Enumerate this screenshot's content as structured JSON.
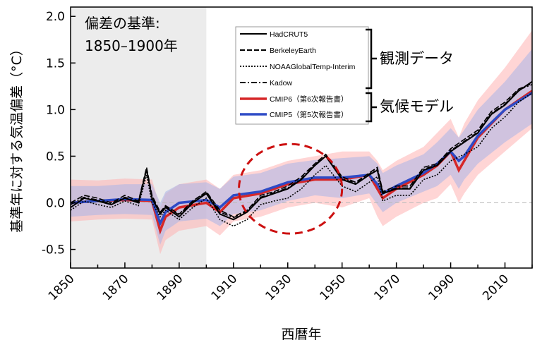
{
  "chart_data": {
    "type": "line",
    "xlabel": "西暦年",
    "ylabel": "基準年に対する気温偏差（°C）",
    "xlim": [
      1850,
      2020
    ],
    "ylim": [
      -0.7,
      2.1
    ],
    "xticks": [
      "1850",
      "1870",
      "1890",
      "1910",
      "1930",
      "1950",
      "1970",
      "1990",
      "2010"
    ],
    "yticks": [
      "-0.5",
      "0.0",
      "0.5",
      "1.0",
      "1.5",
      "2.0"
    ],
    "baseline_note": [
      "偏差の基準:",
      "1850–1900年"
    ],
    "baseline_period": [
      1850,
      1900
    ],
    "legend_groups": [
      {
        "label": "観測データ",
        "entries": [
          "HadCRUT5",
          "BerkeleyEarth",
          "NOAAGlobalTemp-Interim",
          "Kadow"
        ]
      },
      {
        "label": "気候モデル",
        "entries": [
          "CMIP6（第6次報告書）",
          "CMIP5（第5次報告書）"
        ]
      }
    ],
    "series": [
      {
        "name": "HadCRUT5",
        "color": "#000000",
        "dash": "solid",
        "x": [
          1850,
          1855,
          1860,
          1865,
          1870,
          1875,
          1878,
          1880,
          1883,
          1885,
          1890,
          1895,
          1900,
          1905,
          1910,
          1915,
          1920,
          1925,
          1930,
          1935,
          1940,
          1944,
          1950,
          1955,
          1960,
          1963,
          1965,
          1970,
          1975,
          1980,
          1985,
          1990,
          1995,
          2000,
          2005,
          2010,
          2015,
          2020
        ],
        "values": [
          -0.05,
          0.05,
          0.02,
          -0.02,
          0.05,
          0.0,
          0.36,
          0.05,
          -0.12,
          -0.05,
          -0.15,
          0.0,
          0.1,
          -0.12,
          -0.18,
          -0.1,
          0.05,
          0.1,
          0.15,
          0.25,
          0.4,
          0.5,
          0.25,
          0.2,
          0.3,
          0.35,
          0.1,
          0.15,
          0.15,
          0.35,
          0.4,
          0.55,
          0.65,
          0.75,
          0.95,
          1.05,
          1.2,
          1.3
        ]
      },
      {
        "name": "BerkeleyEarth",
        "color": "#000000",
        "dash": "long",
        "x": [
          1850,
          1855,
          1860,
          1865,
          1870,
          1875,
          1878,
          1880,
          1883,
          1885,
          1890,
          1895,
          1900,
          1905,
          1910,
          1915,
          1920,
          1925,
          1930,
          1935,
          1940,
          1944,
          1950,
          1955,
          1960,
          1963,
          1965,
          1970,
          1975,
          1980,
          1985,
          1990,
          1995,
          2000,
          2005,
          2010,
          2015,
          2020
        ],
        "values": [
          0.0,
          0.08,
          0.05,
          0.0,
          0.08,
          0.02,
          0.38,
          0.08,
          -0.1,
          -0.03,
          -0.12,
          0.02,
          0.12,
          -0.08,
          -0.15,
          -0.08,
          0.08,
          0.12,
          0.18,
          0.28,
          0.42,
          0.52,
          0.28,
          0.22,
          0.32,
          0.38,
          0.12,
          0.18,
          0.18,
          0.38,
          0.42,
          0.58,
          0.68,
          0.78,
          0.98,
          1.08,
          1.22,
          1.28
        ]
      },
      {
        "name": "NOAAGlobalTemp-Interim",
        "color": "#000000",
        "dash": "dot",
        "x": [
          1850,
          1855,
          1860,
          1865,
          1870,
          1875,
          1878,
          1880,
          1883,
          1885,
          1890,
          1895,
          1900,
          1905,
          1910,
          1915,
          1920,
          1925,
          1930,
          1935,
          1940,
          1944,
          1950,
          1955,
          1960,
          1963,
          1965,
          1970,
          1975,
          1980,
          1985,
          1990,
          1995,
          2000,
          2005,
          2010,
          2015,
          2020
        ],
        "values": [
          -0.08,
          0.02,
          -0.02,
          -0.05,
          0.02,
          -0.03,
          0.3,
          0.0,
          -0.15,
          -0.08,
          -0.18,
          -0.05,
          0.05,
          -0.18,
          -0.25,
          -0.18,
          -0.02,
          0.02,
          0.05,
          0.15,
          0.3,
          0.4,
          0.18,
          0.12,
          0.22,
          0.28,
          0.02,
          0.08,
          0.08,
          0.25,
          0.3,
          0.45,
          0.52,
          0.6,
          0.8,
          0.92,
          1.08,
          1.18
        ]
      },
      {
        "name": "Kadow",
        "color": "#000000",
        "dash": "dashdot",
        "x": [
          1850,
          1855,
          1860,
          1865,
          1870,
          1875,
          1878,
          1880,
          1883,
          1885,
          1890,
          1895,
          1900,
          1905,
          1910,
          1915,
          1920,
          1925,
          1930,
          1935,
          1940,
          1944,
          1950,
          1955,
          1960,
          1963,
          1965,
          1970,
          1975,
          1980,
          1985,
          1990,
          1995,
          2000,
          2005,
          2010,
          2015,
          2020
        ],
        "values": [
          -0.02,
          0.06,
          0.03,
          -0.01,
          0.06,
          0.01,
          0.35,
          0.06,
          -0.11,
          -0.04,
          -0.13,
          0.01,
          0.11,
          -0.1,
          -0.16,
          -0.09,
          0.06,
          0.11,
          0.16,
          0.26,
          0.41,
          0.5,
          0.26,
          0.21,
          0.31,
          0.36,
          0.11,
          0.16,
          0.16,
          0.36,
          0.41,
          0.56,
          0.66,
          0.76,
          0.96,
          1.06,
          1.21,
          1.27
        ]
      },
      {
        "name": "CMIP6（第6次報告書）",
        "color": "#d62728",
        "dash": "solid",
        "x": [
          1850,
          1860,
          1870,
          1880,
          1883,
          1885,
          1890,
          1900,
          1905,
          1910,
          1920,
          1930,
          1940,
          1950,
          1960,
          1963,
          1965,
          1970,
          1980,
          1985,
          1990,
          1993,
          1995,
          2000,
          2010,
          2020
        ],
        "values": [
          0.0,
          0.02,
          0.03,
          0.02,
          -0.3,
          -0.15,
          -0.05,
          0.0,
          -0.1,
          0.05,
          0.1,
          0.2,
          0.25,
          0.25,
          0.3,
          0.15,
          0.05,
          0.15,
          0.3,
          0.4,
          0.55,
          0.35,
          0.45,
          0.7,
          1.0,
          1.2
        ]
      },
      {
        "name": "CMIP5（第5次報告書）",
        "color": "#2e4bc6",
        "dash": "solid",
        "x": [
          1850,
          1860,
          1870,
          1880,
          1883,
          1885,
          1890,
          1900,
          1905,
          1910,
          1920,
          1930,
          1940,
          1950,
          1960,
          1963,
          1965,
          1970,
          1980,
          1985,
          1990,
          1993,
          1995,
          2000,
          2010,
          2020
        ],
        "values": [
          0.0,
          0.02,
          0.04,
          0.03,
          -0.22,
          -0.1,
          0.0,
          0.03,
          -0.05,
          0.08,
          0.12,
          0.22,
          0.27,
          0.27,
          0.3,
          0.2,
          0.1,
          0.18,
          0.32,
          0.42,
          0.55,
          0.45,
          0.5,
          0.72,
          1.0,
          1.18
        ]
      }
    ],
    "bands": [
      {
        "of": "CMIP6（第6次報告書）",
        "color": "#ffb3b3",
        "x": [
          1850,
          1860,
          1870,
          1880,
          1883,
          1885,
          1890,
          1900,
          1905,
          1910,
          1920,
          1930,
          1940,
          1950,
          1960,
          1963,
          1965,
          1970,
          1980,
          1985,
          1990,
          1993,
          1995,
          2000,
          2010,
          2020
        ],
        "lower": [
          -0.2,
          -0.18,
          -0.17,
          -0.18,
          -0.55,
          -0.4,
          -0.3,
          -0.25,
          -0.35,
          -0.2,
          -0.15,
          -0.05,
          0.0,
          -0.05,
          0.05,
          -0.15,
          -0.25,
          -0.15,
          0.0,
          0.05,
          0.2,
          0.0,
          0.1,
          0.3,
          0.55,
          0.8
        ],
        "upper": [
          0.25,
          0.24,
          0.26,
          0.25,
          -0.05,
          0.1,
          0.2,
          0.25,
          0.15,
          0.3,
          0.35,
          0.45,
          0.5,
          0.55,
          0.55,
          0.45,
          0.35,
          0.45,
          0.6,
          0.75,
          0.9,
          0.7,
          0.85,
          1.1,
          1.45,
          1.85
        ]
      },
      {
        "of": "CMIP5（第5次報告書）",
        "color": "#aab4e8",
        "x": [
          1850,
          1860,
          1870,
          1880,
          1883,
          1885,
          1890,
          1900,
          1905,
          1910,
          1920,
          1930,
          1940,
          1950,
          1960,
          1963,
          1965,
          1970,
          1980,
          1985,
          1990,
          1993,
          1995,
          2000,
          2010,
          2020
        ],
        "lower": [
          -0.15,
          -0.13,
          -0.12,
          -0.13,
          -0.45,
          -0.3,
          -0.2,
          -0.17,
          -0.25,
          -0.12,
          -0.08,
          0.02,
          0.08,
          0.05,
          0.1,
          -0.02,
          -0.1,
          0.0,
          0.12,
          0.18,
          0.3,
          0.15,
          0.25,
          0.42,
          0.65,
          0.85
        ],
        "upper": [
          0.18,
          0.18,
          0.2,
          0.2,
          0.0,
          0.12,
          0.2,
          0.22,
          0.15,
          0.28,
          0.32,
          0.42,
          0.46,
          0.48,
          0.5,
          0.42,
          0.32,
          0.4,
          0.52,
          0.65,
          0.8,
          0.7,
          0.78,
          1.0,
          1.3,
          1.65
        ]
      }
    ],
    "highlight_ellipse": {
      "x_center": 1931,
      "y_center": 0.15,
      "x_radius": 19,
      "y_radius": 0.48,
      "color": "#cc1111"
    },
    "zero_line": 0.0
  }
}
